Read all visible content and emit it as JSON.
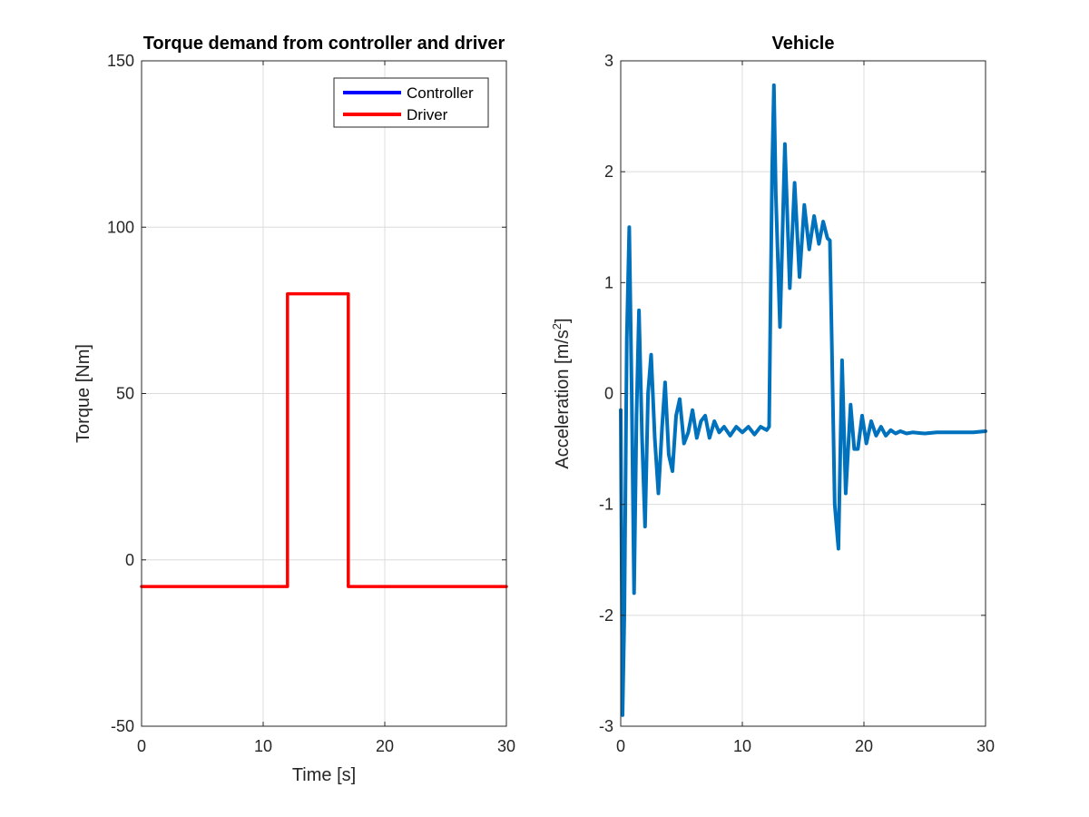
{
  "chart_data": [
    {
      "type": "line",
      "title": "Torque demand from controller and driver",
      "xlabel": "Time [s]",
      "ylabel": "Torque [Nm]",
      "xlim": [
        0,
        30
      ],
      "ylim": [
        -50,
        150
      ],
      "xticks": [
        0,
        10,
        20,
        30
      ],
      "yticks": [
        -50,
        0,
        50,
        100,
        150
      ],
      "xtick_labels": [
        "0",
        "10",
        "20",
        "30"
      ],
      "ytick_labels": [
        "-50",
        "0",
        "50",
        "100",
        "150"
      ],
      "grid": true,
      "legend_position": "top-right",
      "series": [
        {
          "name": "Controller",
          "color": "#0000ff",
          "x": [],
          "y": []
        },
        {
          "name": "Driver",
          "color": "#ff0000",
          "x": [
            0,
            12,
            12,
            17,
            17,
            30
          ],
          "y": [
            -8,
            -8,
            80,
            80,
            -8,
            -8
          ]
        }
      ]
    },
    {
      "type": "line",
      "title": "Vehicle",
      "xlabel": "",
      "ylabel": "Acceleration [m/s",
      "ylabel_superscript": "2",
      "ylabel_suffix": "]",
      "xlim": [
        0,
        30
      ],
      "ylim": [
        -3,
        3
      ],
      "xticks": [
        0,
        10,
        20,
        30
      ],
      "yticks": [
        -3,
        -2,
        -1,
        0,
        1,
        2,
        3
      ],
      "xtick_labels": [
        "0",
        "10",
        "20",
        "30"
      ],
      "ytick_labels": [
        "-3",
        "-2",
        "-1",
        "0",
        "1",
        "2",
        "3"
      ],
      "grid": true,
      "series": [
        {
          "color": "#0072bd",
          "x": [
            0,
            0.15,
            0.3,
            0.5,
            0.7,
            0.9,
            1.1,
            1.3,
            1.5,
            1.75,
            2.0,
            2.25,
            2.5,
            2.8,
            3.1,
            3.4,
            3.65,
            3.95,
            4.25,
            4.55,
            4.85,
            5.2,
            5.55,
            5.9,
            6.25,
            6.6,
            6.95,
            7.3,
            7.7,
            8.1,
            8.5,
            9.0,
            9.5,
            10.0,
            10.5,
            11.0,
            11.5,
            12.0,
            12.2,
            12.45,
            12.6,
            12.75,
            13.1,
            13.5,
            13.9,
            14.3,
            14.7,
            15.1,
            15.5,
            15.9,
            16.3,
            16.65,
            17.0,
            17.2,
            17.35,
            17.6,
            17.9,
            18.2,
            18.5,
            18.9,
            19.2,
            19.5,
            19.85,
            20.2,
            20.6,
            21.0,
            21.4,
            21.8,
            22.2,
            22.6,
            23.0,
            23.5,
            24.0,
            25.0,
            26.0,
            27.0,
            28.0,
            29.0,
            30.0
          ],
          "y": [
            -0.15,
            -2.9,
            -2.0,
            0.5,
            1.5,
            0.0,
            -1.8,
            -0.2,
            0.75,
            -0.4,
            -1.2,
            0.0,
            0.35,
            -0.4,
            -0.9,
            -0.3,
            0.1,
            -0.55,
            -0.7,
            -0.2,
            -0.05,
            -0.45,
            -0.35,
            -0.15,
            -0.4,
            -0.25,
            -0.2,
            -0.4,
            -0.25,
            -0.35,
            -0.3,
            -0.38,
            -0.3,
            -0.35,
            -0.3,
            -0.37,
            -0.3,
            -0.33,
            -0.3,
            2.0,
            2.78,
            1.8,
            0.6,
            2.25,
            0.95,
            1.9,
            1.05,
            1.7,
            1.3,
            1.6,
            1.35,
            1.55,
            1.4,
            1.38,
            0.5,
            -1.0,
            -1.4,
            0.3,
            -0.9,
            -0.1,
            -0.5,
            -0.5,
            -0.2,
            -0.45,
            -0.25,
            -0.38,
            -0.3,
            -0.38,
            -0.33,
            -0.36,
            -0.34,
            -0.36,
            -0.35,
            -0.36,
            -0.35,
            -0.35,
            -0.35,
            -0.35,
            -0.34
          ]
        }
      ]
    }
  ]
}
